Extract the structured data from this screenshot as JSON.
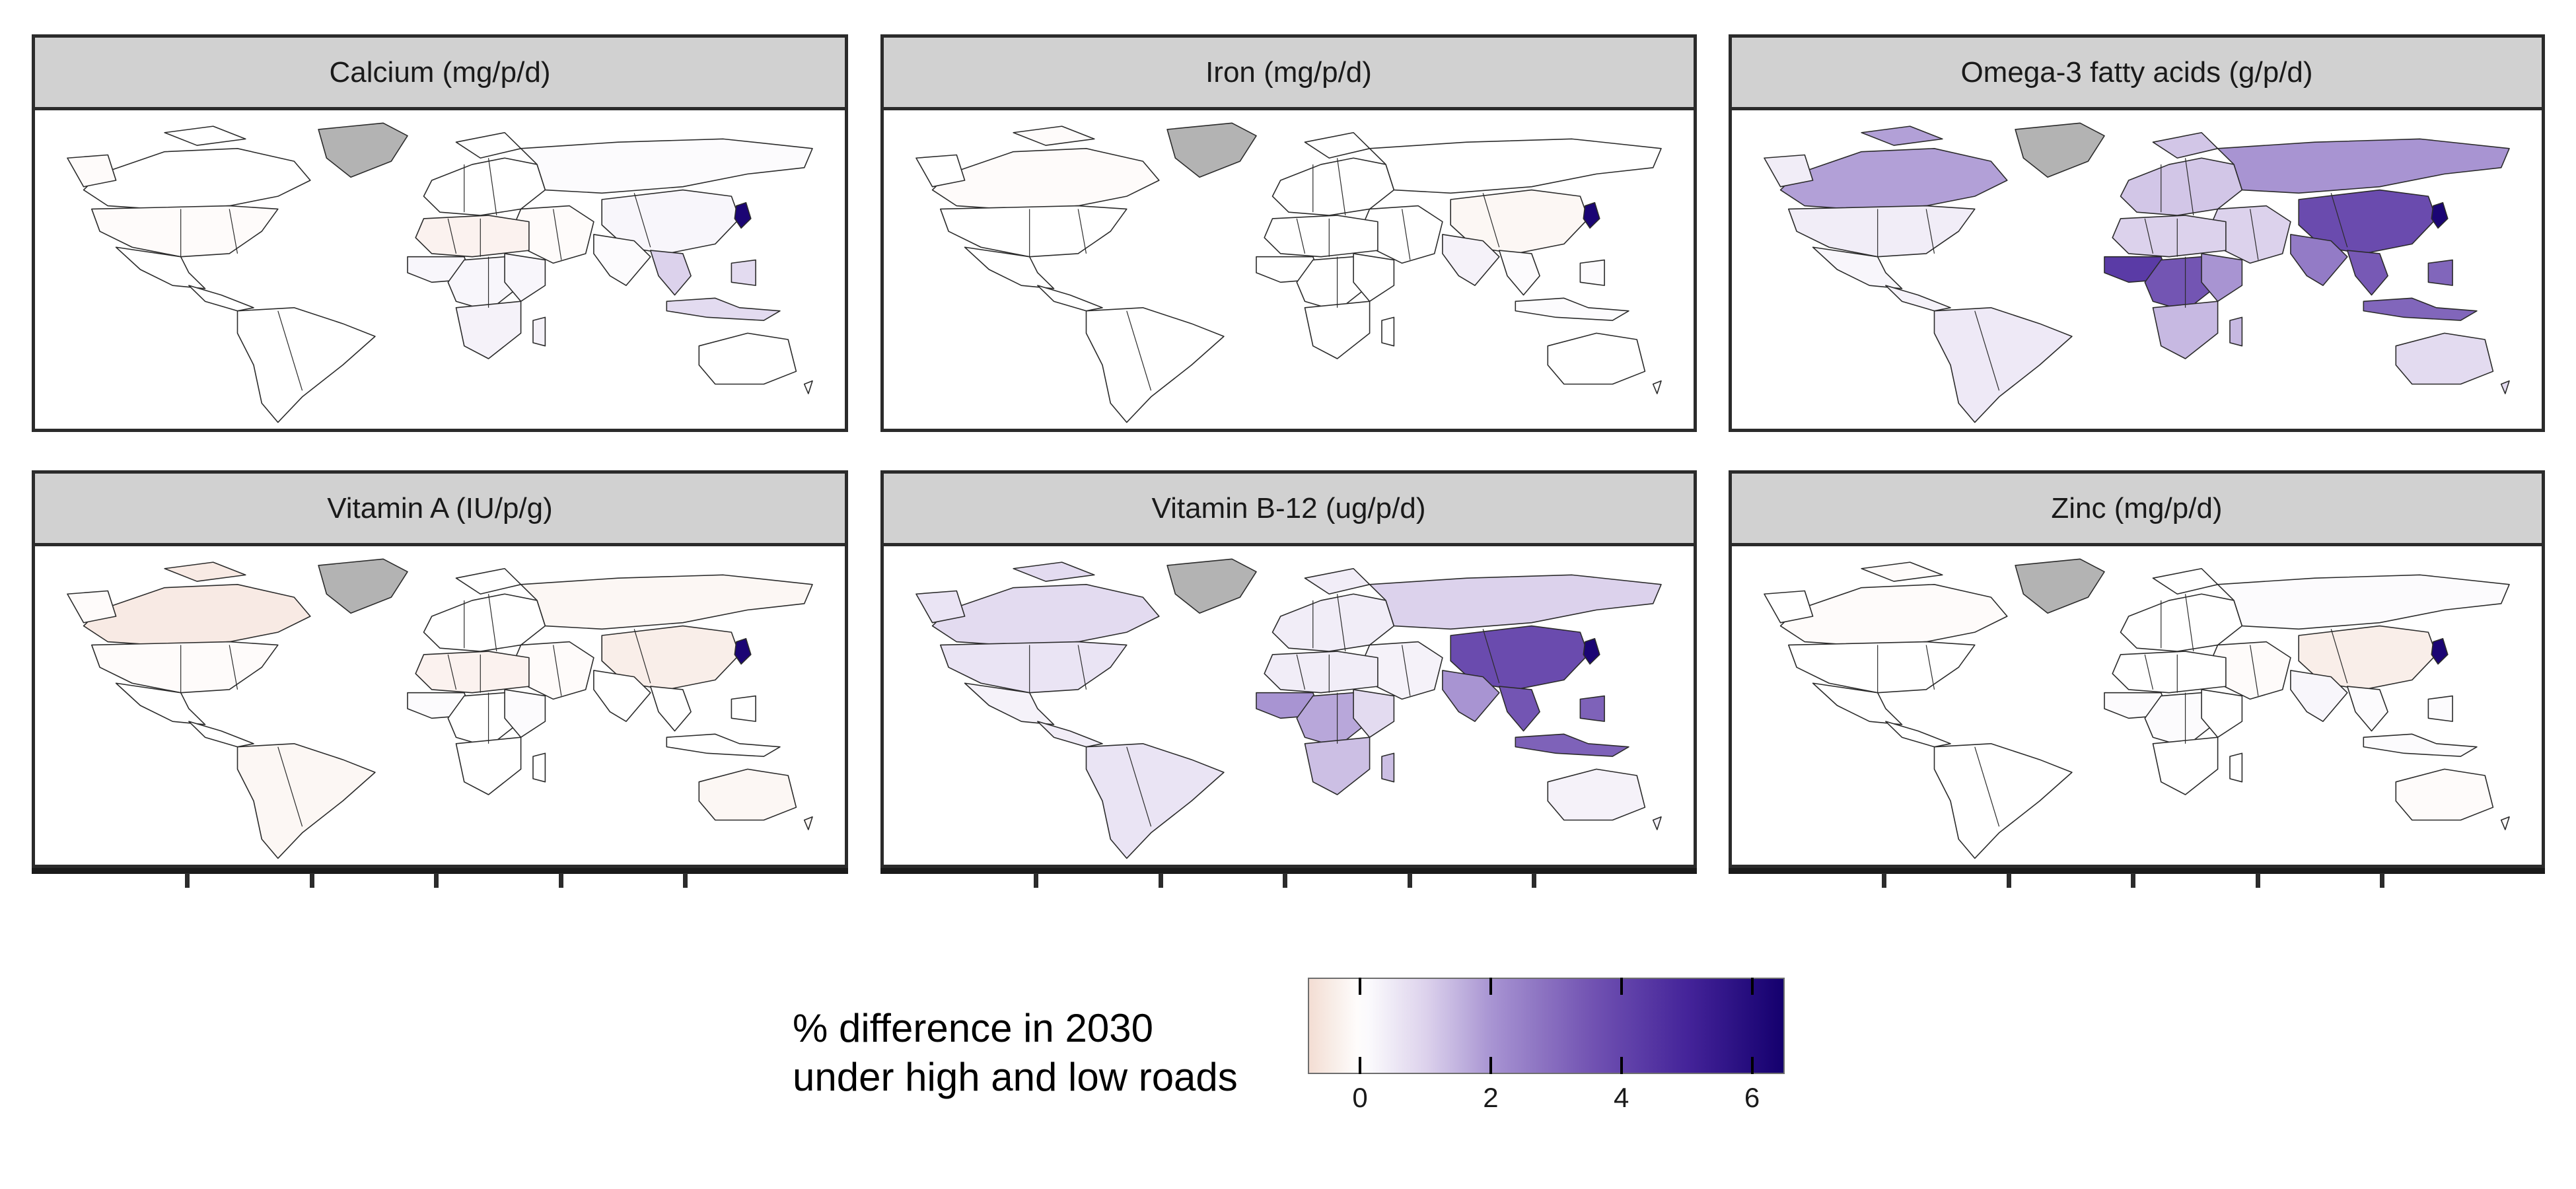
{
  "panels": [
    {
      "title": "Calcium (mg/p/d)"
    },
    {
      "title": "Iron (mg/p/d)"
    },
    {
      "title": "Omega-3 fatty acids (g/p/d)"
    },
    {
      "title": "Vitamin A (IU/p/g)"
    },
    {
      "title": "Vitamin B-12 (ug/p/d)"
    },
    {
      "title": "Zinc (mg/p/d)"
    }
  ],
  "legend": {
    "title_line1": "% difference in 2030",
    "title_line2": "under high and low roads",
    "ticks": [
      "0",
      "2",
      "4",
      "6"
    ],
    "range": [
      -0.8,
      6.5
    ],
    "tick_values": [
      0,
      2,
      4,
      6
    ]
  },
  "colors": {
    "negative": "#f3ddd3",
    "zero": "#ffffff",
    "max": "#14006e",
    "missing": "#b3b3b3",
    "border": "#2b2b2b"
  },
  "chart_data": {
    "type": "heatmap",
    "ylabel": "",
    "xlabel": "",
    "title": "",
    "panels": [
      {
        "name": "Calcium (mg/p/d)",
        "regions": {
          "north_america": 0.0,
          "canada": 0.0,
          "greenland": null,
          "usa": -0.1,
          "mexico": 0.0,
          "central_america": 0.0,
          "south_america": 0.0,
          "europe": 0.0,
          "russia": 0.1,
          "north_africa": -0.3,
          "west_africa": 0.2,
          "central_africa": 0.2,
          "east_africa": 0.2,
          "southern_africa": 0.3,
          "middle_east": -0.1,
          "india": 0.1,
          "china": 0.2,
          "korea": 6.3,
          "southeast_asia": 1.0,
          "indonesia": 0.8,
          "australia": 0.0
        }
      },
      {
        "name": "Iron (mg/p/d)",
        "regions": {
          "north_america": 0.0,
          "canada": -0.1,
          "greenland": null,
          "usa": 0.0,
          "mexico": 0.0,
          "central_america": 0.0,
          "south_america": 0.0,
          "europe": 0.0,
          "russia": 0.0,
          "north_africa": 0.0,
          "west_africa": 0.0,
          "central_africa": 0.0,
          "east_africa": 0.0,
          "southern_africa": 0.0,
          "middle_east": 0.0,
          "india": 0.3,
          "china": -0.2,
          "korea": 6.3,
          "southeast_asia": 0.1,
          "indonesia": 0.1,
          "australia": 0.0
        }
      },
      {
        "name": "Omega-3 fatty acids (g/p/d)",
        "regions": {
          "north_america": 1.2,
          "canada": 1.8,
          "greenland": null,
          "usa": 0.4,
          "mexico": 0.2,
          "central_america": 0.3,
          "south_america": 0.5,
          "europe": 1.2,
          "russia": 2.0,
          "north_africa": 1.0,
          "west_africa": 4.3,
          "central_africa": 3.5,
          "east_africa": 2.0,
          "southern_africa": 1.4,
          "middle_east": 1.0,
          "india": 2.6,
          "china": 3.8,
          "korea": 6.3,
          "southeast_asia": 3.4,
          "indonesia": 3.1,
          "australia": 0.8
        }
      },
      {
        "name": "Vitamin A (IU/p/g)",
        "regions": {
          "north_america": -0.2,
          "canada": -0.5,
          "greenland": null,
          "usa": -0.1,
          "mexico": 0.0,
          "central_america": 0.0,
          "south_america": -0.2,
          "europe": 0.0,
          "russia": -0.2,
          "north_africa": -0.3,
          "west_africa": 0.1,
          "central_africa": 0.0,
          "east_africa": 0.1,
          "southern_africa": 0.0,
          "middle_east": -0.1,
          "india": 0.0,
          "china": -0.4,
          "korea": 6.3,
          "southeast_asia": 0.0,
          "indonesia": 0.0,
          "australia": -0.2
        }
      },
      {
        "name": "Vitamin B-12 (ug/p/d)",
        "regions": {
          "north_america": 0.6,
          "canada": 0.8,
          "greenland": null,
          "usa": 0.6,
          "mexico": 0.3,
          "central_america": 0.4,
          "south_america": 0.6,
          "europe": 0.4,
          "russia": 1.0,
          "north_africa": 0.4,
          "west_africa": 2.0,
          "central_africa": 1.7,
          "east_africa": 0.8,
          "southern_africa": 1.3,
          "middle_east": 0.3,
          "india": 2.0,
          "china": 3.8,
          "korea": 6.3,
          "southeast_asia": 3.5,
          "indonesia": 3.2,
          "australia": 0.3
        }
      },
      {
        "name": "Zinc (mg/p/d)",
        "regions": {
          "north_america": 0.0,
          "canada": -0.1,
          "greenland": null,
          "usa": 0.0,
          "mexico": 0.0,
          "central_america": 0.0,
          "south_america": 0.0,
          "europe": 0.0,
          "russia": 0.1,
          "north_africa": 0.0,
          "west_africa": 0.1,
          "central_africa": 0.1,
          "east_africa": 0.0,
          "southern_africa": 0.0,
          "middle_east": -0.1,
          "india": 0.2,
          "china": -0.4,
          "korea": 6.3,
          "southeast_asia": 0.1,
          "indonesia": 0.1,
          "australia": -0.1
        }
      }
    ]
  }
}
